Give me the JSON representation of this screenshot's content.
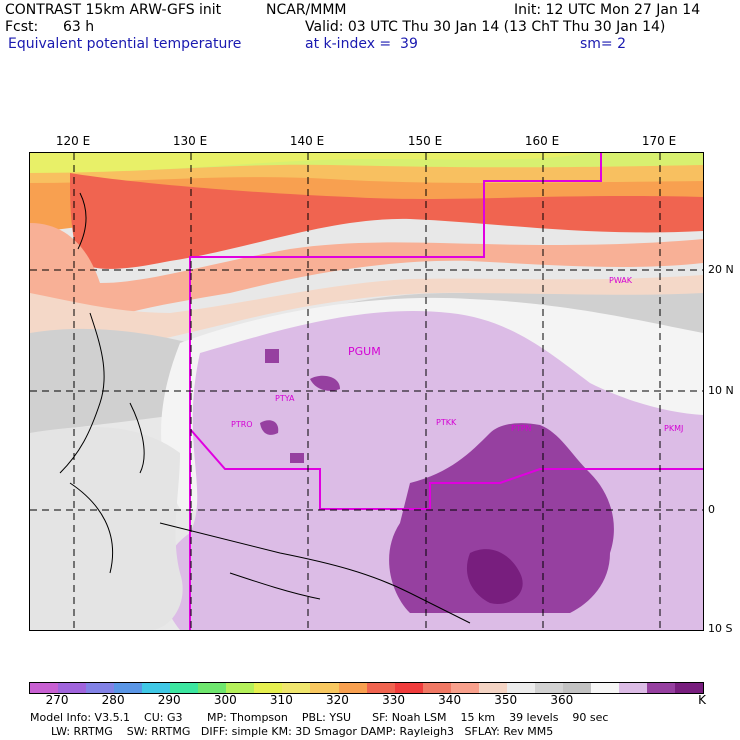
{
  "header": {
    "model_line": "CONTRAST 15km ARW-GFS init",
    "org": "NCAR/MMM",
    "init": "Init: 12 UTC Mon 27 Jan 14",
    "fcst_label": "Fcst:",
    "fcst_value": "63 h",
    "valid": "Valid: 03 UTC Thu 30 Jan 14 (13 ChT Thu 30 Jan 14)",
    "field": "Equivalent potential temperature",
    "level": "at k-index =  39",
    "smoothing": "sm= 2"
  },
  "map": {
    "lon_labels": [
      "120 E",
      "130 E",
      "140 E",
      "150 E",
      "160 E",
      "170 E"
    ],
    "lat_labels": [
      "20 N",
      "10 N",
      "0",
      "10 S"
    ],
    "stations": [
      "PWAK",
      "PGUM",
      "PTYA",
      "PTRO",
      "PTKK",
      "PTPN",
      "PKMJ"
    ]
  },
  "colorbar": {
    "colors": [
      "#c860d2",
      "#a064dc",
      "#8282e6",
      "#5a96e6",
      "#40c8e6",
      "#3ce6a0",
      "#6ee66e",
      "#b4f05a",
      "#e6f050",
      "#f0e66e",
      "#f8c860",
      "#f8a050",
      "#f06450",
      "#f03c3c",
      "#f07864",
      "#f8a08c",
      "#f4d4c4",
      "#ececec",
      "#d2d2d2",
      "#c2c2c2",
      "#f6f6f6",
      "#dcbce6",
      "#9640a0",
      "#781e7e"
    ],
    "labels": [
      "270",
      "280",
      "290",
      "300",
      "310",
      "320",
      "330",
      "340",
      "350",
      "360",
      "K"
    ]
  },
  "footer": {
    "line1": "Model Info: V3.5.1    CU: G3       MP: Thompson    PBL: YSU      SF: Noah LSM    15 km    39 levels    90 sec",
    "line2": "      LW: RRTMG    SW: RRTMG   DIFF: simple KM: 3D Smagor DAMP: Rayleigh3   SFLAY: Rev MM5"
  }
}
